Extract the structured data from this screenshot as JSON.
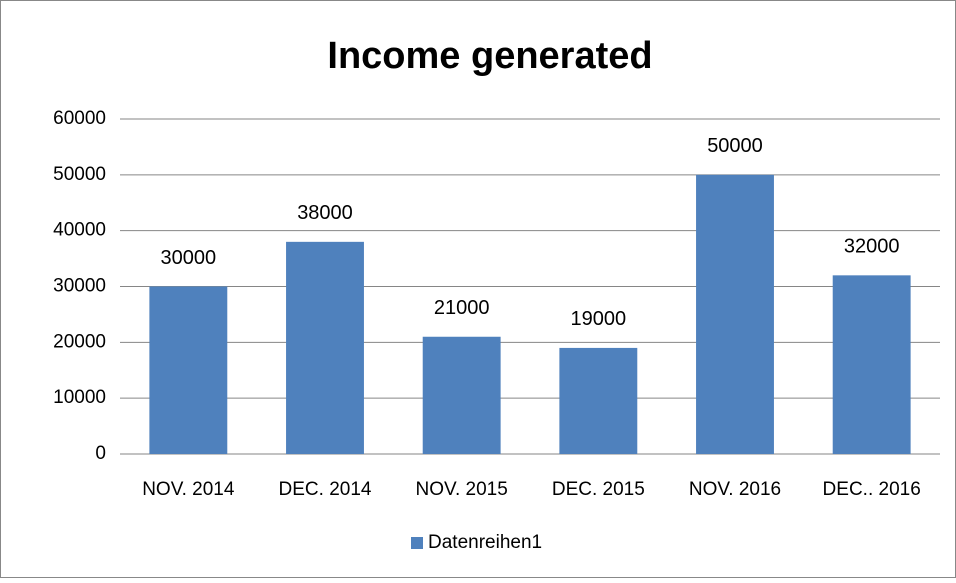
{
  "chart_data": {
    "type": "bar",
    "title": "Income generated",
    "categories": [
      "NOV. 2014",
      "DEC. 2014",
      "NOV. 2015",
      "DEC. 2015",
      "NOV. 2016",
      "DEC.. 2016"
    ],
    "series": [
      {
        "name": "Datenreihen1",
        "color": "#4f81bd",
        "values": [
          30000,
          38000,
          21000,
          19000,
          50000,
          32000
        ]
      }
    ],
    "ylim": [
      0,
      60000
    ],
    "yticks": [
      0,
      10000,
      20000,
      30000,
      40000,
      50000,
      60000
    ],
    "grid": true,
    "legend": "bottom",
    "data_labels": true
  }
}
